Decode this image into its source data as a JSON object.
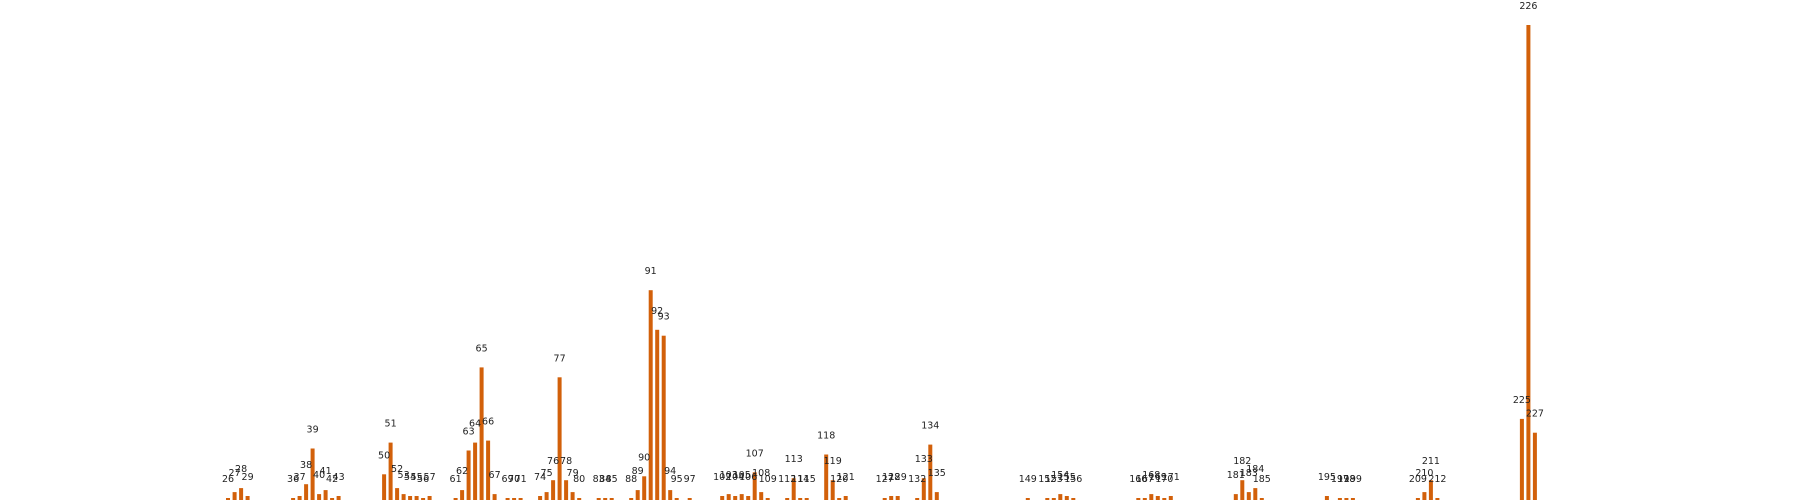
{
  "chart_data": {
    "type": "bar",
    "title": "",
    "xlabel": "",
    "ylabel": "",
    "grid": false,
    "legend": "none",
    "color": "#d2600a",
    "x_domain": [
      0,
      265
    ],
    "ylim": [
      0,
      240
    ],
    "bars": [
      {
        "label": "26",
        "x": 26,
        "value": 1
      },
      {
        "label": "27",
        "x": 27,
        "value": 4
      },
      {
        "label": "28",
        "x": 28,
        "value": 6
      },
      {
        "label": "29",
        "x": 29,
        "value": 2
      },
      {
        "label": "36",
        "x": 36,
        "value": 1
      },
      {
        "label": "37",
        "x": 37,
        "value": 2
      },
      {
        "label": "38",
        "x": 38,
        "value": 8
      },
      {
        "label": "39",
        "x": 39,
        "value": 26
      },
      {
        "label": "40",
        "x": 40,
        "value": 3
      },
      {
        "label": "41",
        "x": 41,
        "value": 5
      },
      {
        "label": "42",
        "x": 42,
        "value": 1
      },
      {
        "label": "43",
        "x": 43,
        "value": 2
      },
      {
        "label": "50",
        "x": 50,
        "value": 13
      },
      {
        "label": "51",
        "x": 51,
        "value": 29
      },
      {
        "label": "52",
        "x": 52,
        "value": 6
      },
      {
        "label": "53",
        "x": 53,
        "value": 3
      },
      {
        "label": "54",
        "x": 54,
        "value": 2
      },
      {
        "label": "55",
        "x": 55,
        "value": 2
      },
      {
        "label": "56",
        "x": 56,
        "value": 1
      },
      {
        "label": "57",
        "x": 57,
        "value": 2
      },
      {
        "label": "61",
        "x": 61,
        "value": 1
      },
      {
        "label": "62",
        "x": 62,
        "value": 5
      },
      {
        "label": "63",
        "x": 63,
        "value": 25
      },
      {
        "label": "64",
        "x": 64,
        "value": 29
      },
      {
        "label": "65",
        "x": 65,
        "value": 67
      },
      {
        "label": "66",
        "x": 66,
        "value": 30
      },
      {
        "label": "67",
        "x": 67,
        "value": 3
      },
      {
        "label": "69",
        "x": 69,
        "value": 1
      },
      {
        "label": "70",
        "x": 70,
        "value": 1
      },
      {
        "label": "71",
        "x": 71,
        "value": 1
      },
      {
        "label": "74",
        "x": 74,
        "value": 2
      },
      {
        "label": "75",
        "x": 75,
        "value": 4
      },
      {
        "label": "76",
        "x": 76,
        "value": 10
      },
      {
        "label": "77",
        "x": 77,
        "value": 62
      },
      {
        "label": "78",
        "x": 78,
        "value": 10
      },
      {
        "label": "79",
        "x": 79,
        "value": 4
      },
      {
        "label": "80",
        "x": 80,
        "value": 1
      },
      {
        "label": "83",
        "x": 83,
        "value": 1
      },
      {
        "label": "84",
        "x": 84,
        "value": 1
      },
      {
        "label": "85",
        "x": 85,
        "value": 1
      },
      {
        "label": "88",
        "x": 88,
        "value": 1
      },
      {
        "label": "89",
        "x": 89,
        "value": 5
      },
      {
        "label": "90",
        "x": 90,
        "value": 12
      },
      {
        "label": "91",
        "x": 91,
        "value": 106
      },
      {
        "label": "92",
        "x": 92,
        "value": 86
      },
      {
        "label": "93",
        "x": 93,
        "value": 83
      },
      {
        "label": "94",
        "x": 94,
        "value": 5
      },
      {
        "label": "95",
        "x": 95,
        "value": 1
      },
      {
        "label": "97",
        "x": 97,
        "value": 1
      },
      {
        "label": "102",
        "x": 102,
        "value": 2
      },
      {
        "label": "103",
        "x": 103,
        "value": 3
      },
      {
        "label": "104",
        "x": 104,
        "value": 2
      },
      {
        "label": "105",
        "x": 105,
        "value": 3
      },
      {
        "label": "106",
        "x": 106,
        "value": 2
      },
      {
        "label": "107",
        "x": 107,
        "value": 14
      },
      {
        "label": "108",
        "x": 108,
        "value": 4
      },
      {
        "label": "109",
        "x": 109,
        "value": 1
      },
      {
        "label": "112",
        "x": 112,
        "value": 1
      },
      {
        "label": "113",
        "x": 113,
        "value": 11
      },
      {
        "label": "114",
        "x": 114,
        "value": 1
      },
      {
        "label": "115",
        "x": 115,
        "value": 1
      },
      {
        "label": "118",
        "x": 118,
        "value": 23
      },
      {
        "label": "119",
        "x": 119,
        "value": 10
      },
      {
        "label": "120",
        "x": 120,
        "value": 1
      },
      {
        "label": "121",
        "x": 121,
        "value": 2
      },
      {
        "label": "127",
        "x": 127,
        "value": 1
      },
      {
        "label": "128",
        "x": 128,
        "value": 2
      },
      {
        "label": "129",
        "x": 129,
        "value": 2
      },
      {
        "label": "132",
        "x": 132,
        "value": 1
      },
      {
        "label": "133",
        "x": 133,
        "value": 11
      },
      {
        "label": "134",
        "x": 134,
        "value": 28
      },
      {
        "label": "135",
        "x": 135,
        "value": 4
      },
      {
        "label": "149",
        "x": 149,
        "value": 1
      },
      {
        "label": "152",
        "x": 152,
        "value": 1
      },
      {
        "label": "153",
        "x": 153,
        "value": 1
      },
      {
        "label": "154",
        "x": 154,
        "value": 3
      },
      {
        "label": "155",
        "x": 155,
        "value": 2
      },
      {
        "label": "156",
        "x": 156,
        "value": 1
      },
      {
        "label": "166",
        "x": 166,
        "value": 1
      },
      {
        "label": "167",
        "x": 167,
        "value": 1
      },
      {
        "label": "168",
        "x": 168,
        "value": 3
      },
      {
        "label": "169",
        "x": 169,
        "value": 2
      },
      {
        "label": "170",
        "x": 170,
        "value": 1
      },
      {
        "label": "171",
        "x": 171,
        "value": 2
      },
      {
        "label": "181",
        "x": 181,
        "value": 3
      },
      {
        "label": "182",
        "x": 182,
        "value": 10
      },
      {
        "label": "183",
        "x": 183,
        "value": 4
      },
      {
        "label": "184",
        "x": 184,
        "value": 6
      },
      {
        "label": "185",
        "x": 185,
        "value": 1
      },
      {
        "label": "195",
        "x": 195,
        "value": 2
      },
      {
        "label": "197",
        "x": 197,
        "value": 1
      },
      {
        "label": "198",
        "x": 198,
        "value": 1
      },
      {
        "label": "199",
        "x": 199,
        "value": 1
      },
      {
        "label": "209",
        "x": 209,
        "value": 1
      },
      {
        "label": "210",
        "x": 210,
        "value": 4
      },
      {
        "label": "211",
        "x": 211,
        "value": 10
      },
      {
        "label": "212",
        "x": 212,
        "value": 1
      },
      {
        "label": "225",
        "x": 225,
        "value": 41
      },
      {
        "label": "226",
        "x": 226,
        "value": 240
      },
      {
        "label": "227",
        "x": 227,
        "value": 34
      }
    ]
  }
}
